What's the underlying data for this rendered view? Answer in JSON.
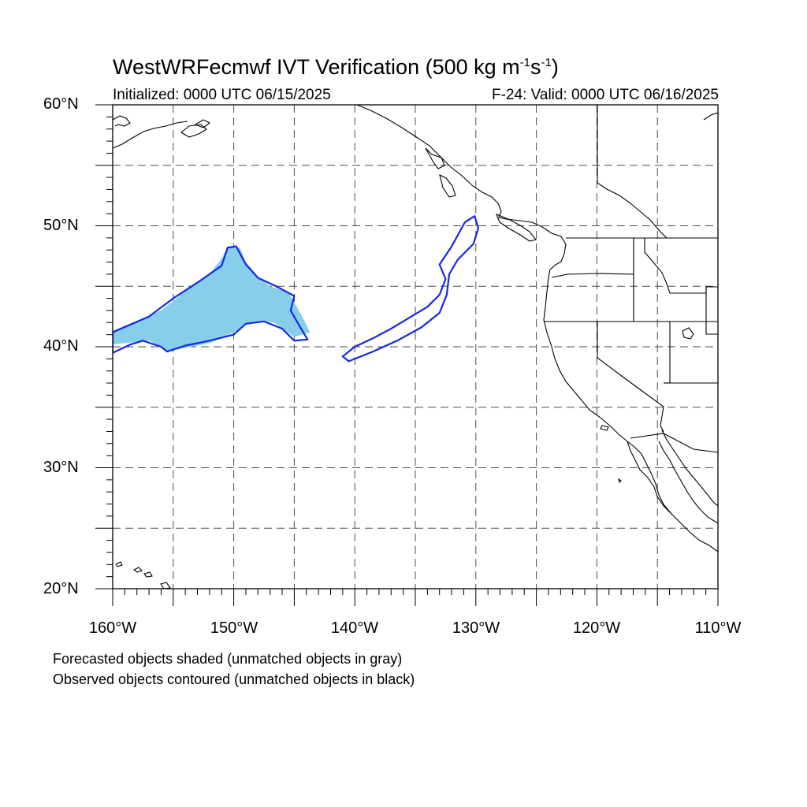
{
  "title": {
    "main": "WestWRFecmwf IVT Verification (500 kg m",
    "sup1": "-1",
    "mid": "s",
    "sup2": "-1",
    "end": ")"
  },
  "subtitle_left": "Initialized: 0000 UTC 06/15/2025",
  "subtitle_right": "F-24: Valid: 0000 UTC 06/16/2025",
  "y_labels": [
    "60°N",
    "50°N",
    "40°N",
    "30°N",
    "20°N"
  ],
  "x_labels": [
    "160°W",
    "150°W",
    "140°W",
    "130°W",
    "120°W",
    "110°W"
  ],
  "notes": [
    "Forecasted objects shaded (unmatched objects in gray)",
    "Observed objects contoured (unmatched objects in black)"
  ],
  "map_extent": {
    "lon": [
      -160,
      -110
    ],
    "lat": [
      20,
      60
    ]
  },
  "gridlines": {
    "lon_step": 5,
    "lat_step": 5,
    "style": "dashed"
  },
  "colors": {
    "forecast_fill": "#87ceeb",
    "observed_contour": "#1428e6",
    "coastline": "#000000",
    "gridline": "#4d4d4d"
  },
  "chart_data": {
    "type": "map",
    "forecast_objects": [
      {
        "polygon": [
          [
            -160,
            41.3
          ],
          [
            -156,
            43
          ],
          [
            -154,
            44.6
          ],
          [
            -152,
            46
          ],
          [
            -151,
            47.3
          ],
          [
            -150.5,
            48.2
          ],
          [
            -149.5,
            48.2
          ],
          [
            -149,
            47
          ],
          [
            -148,
            45.8
          ],
          [
            -147,
            45
          ],
          [
            -145.5,
            44.5
          ],
          [
            -144.5,
            42.8
          ],
          [
            -143.7,
            41.2
          ],
          [
            -145,
            40.8
          ],
          [
            -146.5,
            41.9
          ],
          [
            -147.5,
            42.2
          ],
          [
            -149,
            41.8
          ],
          [
            -150,
            41.2
          ],
          [
            -152,
            40.3
          ],
          [
            -154,
            39.9
          ],
          [
            -155.5,
            39.6
          ],
          [
            -156,
            40
          ],
          [
            -157,
            40.5
          ],
          [
            -160,
            40.2
          ]
        ]
      }
    ],
    "observed_objects": [
      {
        "polygon": [
          [
            -160,
            41.2
          ],
          [
            -157,
            42.5
          ],
          [
            -155,
            44
          ],
          [
            -153,
            45.3
          ],
          [
            -151,
            46.7
          ],
          [
            -150.5,
            48.2
          ],
          [
            -149.8,
            48.3
          ],
          [
            -149,
            46.8
          ],
          [
            -148,
            45.7
          ],
          [
            -146.5,
            45
          ],
          [
            -145,
            44.2
          ],
          [
            -145.3,
            43
          ],
          [
            -144.5,
            41.6
          ],
          [
            -143.9,
            40.6
          ],
          [
            -145,
            40.5
          ],
          [
            -146,
            41.5
          ],
          [
            -147.5,
            42.1
          ],
          [
            -149,
            41.9
          ],
          [
            -150,
            41
          ],
          [
            -152,
            40.5
          ],
          [
            -154,
            40.1
          ],
          [
            -155.5,
            39.6
          ],
          [
            -156,
            40
          ],
          [
            -157.5,
            40.5
          ],
          [
            -158.5,
            40.2
          ],
          [
            -160,
            39.5
          ]
        ]
      },
      {
        "polygon": [
          [
            -141,
            39.2
          ],
          [
            -140,
            40
          ],
          [
            -138.5,
            40.7
          ],
          [
            -137,
            41.5
          ],
          [
            -135.5,
            42.4
          ],
          [
            -134,
            43.3
          ],
          [
            -133,
            44.3
          ],
          [
            -132.5,
            45.6
          ],
          [
            -133,
            46.8
          ],
          [
            -132,
            48.3
          ],
          [
            -130.9,
            50.3
          ],
          [
            -130.1,
            50.8
          ],
          [
            -129.8,
            49.8
          ],
          [
            -130.2,
            48.5
          ],
          [
            -131.5,
            47.2
          ],
          [
            -132.2,
            46
          ],
          [
            -132.4,
            44.3
          ],
          [
            -133,
            42.8
          ],
          [
            -134.5,
            41.6
          ],
          [
            -136.5,
            40.5
          ],
          [
            -138.5,
            39.6
          ],
          [
            -140.5,
            38.8
          ]
        ]
      }
    ]
  }
}
